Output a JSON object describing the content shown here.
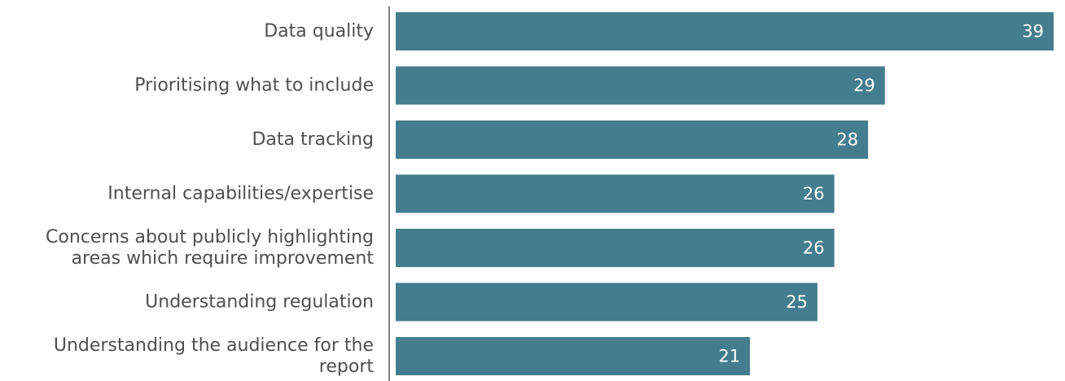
{
  "chart_data": {
    "type": "bar",
    "orientation": "horizontal",
    "categories": [
      [
        "Data quality"
      ],
      [
        "Prioritising what to include"
      ],
      [
        "Data tracking"
      ],
      [
        "Internal capabilities/expertise"
      ],
      [
        "Concerns about publicly highlighting",
        "areas which require improvement"
      ],
      [
        "Understanding regulation"
      ],
      [
        "Understanding the audience for the",
        "report"
      ]
    ],
    "values": [
      39,
      29,
      28,
      26,
      26,
      25,
      21
    ],
    "data_labels": [
      "39",
      "29",
      "28",
      "26",
      "26",
      "25",
      "21"
    ],
    "title": "",
    "xlabel": "",
    "ylabel": "",
    "xlim": [
      0,
      39
    ],
    "grid": false,
    "legend": "none",
    "bar_color": "#447d8e"
  }
}
